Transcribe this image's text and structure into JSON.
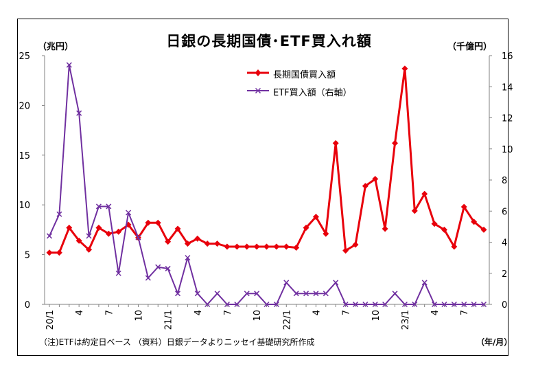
{
  "texts": {
    "title": "日銀の長期国債･ETF買入れ額",
    "ylabel_left": "（兆円）",
    "ylabel_right": "（千億円）",
    "xlabel": "（年/月）",
    "note": "（注)ETFは約定日ベース （資料）日銀データよりニッセイ基礎研究所作成"
  },
  "chart_data": {
    "type": "line",
    "title": "日銀の長期国債･ETF買入れ額",
    "x_tick_labels": [
      "20/1",
      "4",
      "7",
      "10",
      "21/1",
      "4",
      "7",
      "10",
      "22/1",
      "4",
      "7",
      "10",
      "23/1",
      "4",
      "7"
    ],
    "x_tick_index": [
      0,
      3,
      6,
      9,
      12,
      15,
      18,
      21,
      24,
      27,
      30,
      33,
      36,
      39,
      42
    ],
    "y_left": {
      "label": "（兆円）",
      "range": [
        0,
        25
      ],
      "ticks": [
        0,
        5,
        10,
        15,
        20,
        25
      ]
    },
    "y_right": {
      "label": "（千億円）",
      "range": [
        0,
        16
      ],
      "ticks": [
        0,
        2,
        4,
        6,
        8,
        10,
        12,
        14,
        16
      ]
    },
    "x_label": "（年/月）",
    "legend_position": "top-center",
    "series": [
      {
        "name": "長期国債買入額",
        "axis": "left",
        "color": "#e8000b",
        "marker": "diamond",
        "values": [
          5.2,
          5.2,
          7.7,
          6.4,
          5.5,
          7.7,
          7.1,
          7.3,
          8.0,
          6.7,
          8.2,
          8.2,
          6.3,
          7.6,
          6.1,
          6.6,
          6.1,
          6.1,
          5.8,
          5.8,
          5.8,
          5.8,
          5.8,
          5.8,
          5.8,
          5.7,
          7.7,
          8.8,
          7.1,
          16.2,
          5.4,
          6.0,
          11.9,
          12.6,
          7.6,
          16.2,
          23.7,
          9.4,
          11.1,
          8.1,
          7.5,
          5.8,
          9.8,
          8.3,
          7.5
        ]
      },
      {
        "name": "ETF買入額（右軸）",
        "axis": "right",
        "color": "#7030a0",
        "marker": "x",
        "values": [
          4.4,
          5.8,
          15.4,
          12.3,
          4.4,
          6.3,
          6.3,
          2.0,
          5.9,
          4.3,
          1.7,
          2.4,
          2.3,
          0.7,
          3.0,
          0.7,
          0.0,
          0.7,
          0.0,
          0.0,
          0.7,
          0.7,
          0.0,
          0.0,
          1.4,
          0.7,
          0.7,
          0.7,
          0.7,
          1.4,
          0.0,
          0.0,
          0.0,
          0.0,
          0.0,
          0.7,
          0.0,
          0.0,
          1.4,
          0.0,
          0.0,
          0.0,
          0.0,
          0.0,
          0.0
        ]
      }
    ]
  }
}
